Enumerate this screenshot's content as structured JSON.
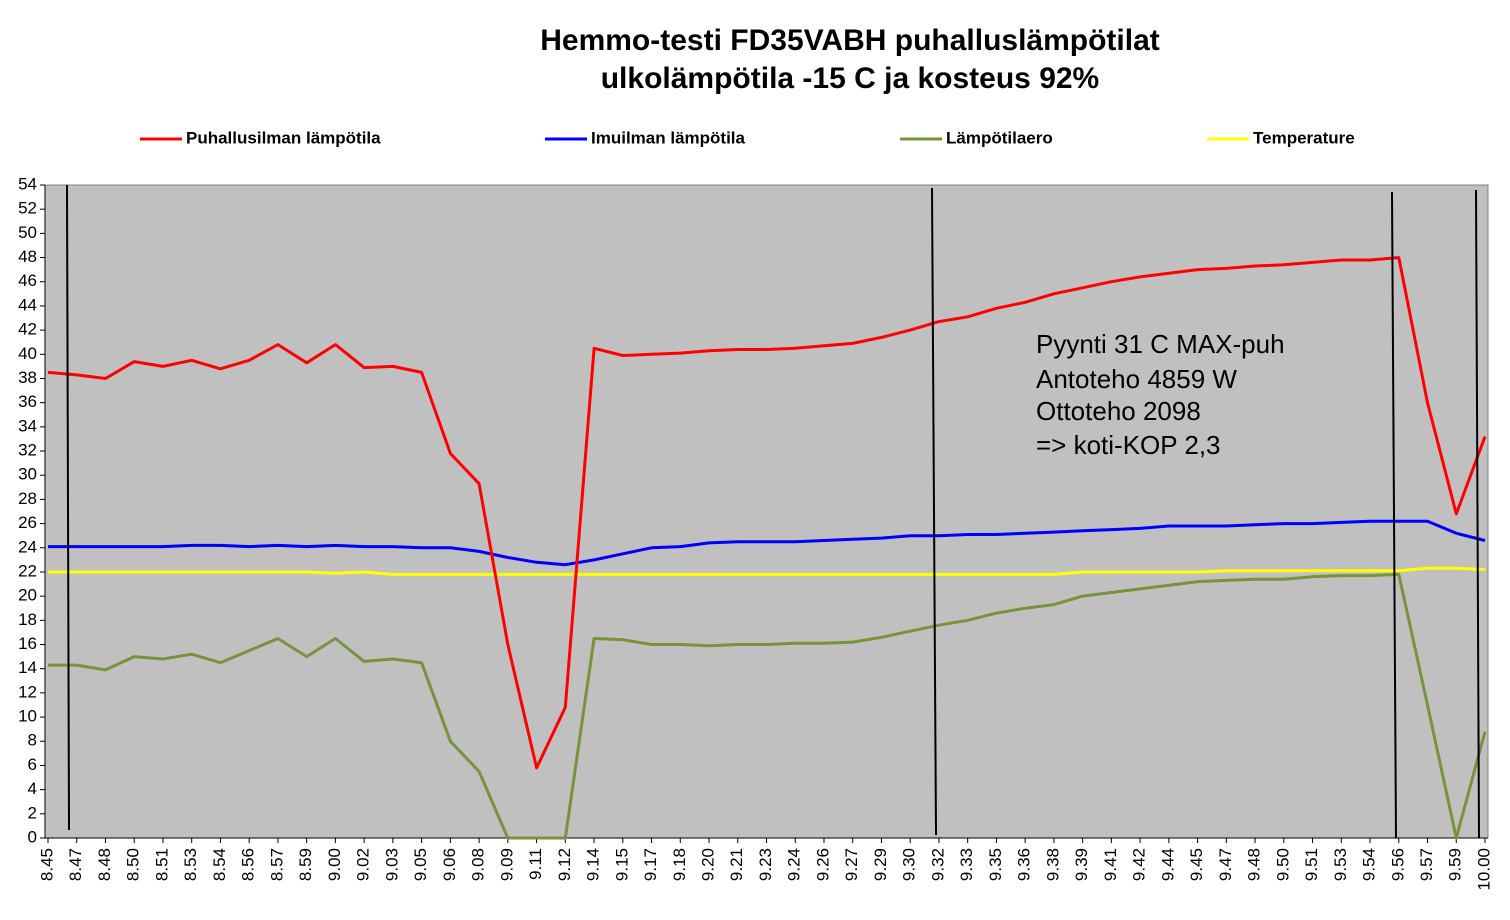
{
  "chart_data": {
    "type": "line",
    "title": [
      "Hemmo-testi  FD35VABH  puhalluslämpötilat",
      "ulkolämpötila  -15 C ja kosteus 92%"
    ],
    "annotations": [
      "Pyynti  31 C MAX-puh",
      "Antoteho 4859 W",
      "Ottoteho 2098",
      "=> koti-KOP 2,3"
    ],
    "categories": [
      "8.45",
      "8.47",
      "8.48",
      "8.50",
      "8.51",
      "8.53",
      "8.54",
      "8.56",
      "8.57",
      "8.59",
      "9.00",
      "9.02",
      "9.03",
      "9.05",
      "9.06",
      "9.08",
      "9.09",
      "9.11",
      "9.12",
      "9.14",
      "9.15",
      "9.17",
      "9.18",
      "9.20",
      "9.21",
      "9.23",
      "9.24",
      "9.26",
      "9.27",
      "9.29",
      "9.30",
      "9.32",
      "9.33",
      "9.35",
      "9.36",
      "9.38",
      "9.39",
      "9.41",
      "9.42",
      "9.44",
      "9.45",
      "9.47",
      "9.48",
      "9.50",
      "9.51",
      "9.53",
      "9.54",
      "9.56",
      "9.57",
      "9.59",
      "10.00"
    ],
    "series": [
      {
        "name": "Puhallusilman lämpötila",
        "color": "#ff0000",
        "values": [
          38.5,
          38.3,
          38.0,
          39.4,
          39.0,
          39.5,
          38.8,
          39.5,
          40.8,
          39.3,
          40.8,
          38.9,
          39.0,
          38.5,
          31.8,
          29.3,
          16,
          5.8,
          10.8,
          40.5,
          39.9,
          40.0,
          40.1,
          40.3,
          40.4,
          40.4,
          40.5,
          40.7,
          40.9,
          41.4,
          42.0,
          42.7,
          43.1,
          43.8,
          44.3,
          45.0,
          45.5,
          46.0,
          46.4,
          46.7,
          47.0,
          47.1,
          47.3,
          47.4,
          47.6,
          47.8,
          47.8,
          48.0,
          36,
          26.8,
          33.2
        ]
      },
      {
        "name": "Imuilman lämpötila",
        "color": "#0000ff",
        "values": [
          24.1,
          24.1,
          24.1,
          24.1,
          24.1,
          24.2,
          24.2,
          24.1,
          24.2,
          24.1,
          24.2,
          24.1,
          24.1,
          24.0,
          24.0,
          23.7,
          23.2,
          22.8,
          22.6,
          23.0,
          23.5,
          24.0,
          24.1,
          24.4,
          24.5,
          24.5,
          24.5,
          24.6,
          24.7,
          24.8,
          25.0,
          25.0,
          25.1,
          25.1,
          25.2,
          25.3,
          25.4,
          25.5,
          25.6,
          25.8,
          25.8,
          25.8,
          25.9,
          26.0,
          26.0,
          26.1,
          26.2,
          26.2,
          26.2,
          25.2,
          24.6
        ]
      },
      {
        "name": "Lämpötilaero",
        "color": "#77933c",
        "values": [
          14.3,
          14.3,
          13.9,
          15.0,
          14.8,
          15.2,
          14.5,
          15.5,
          16.5,
          15.0,
          16.5,
          14.6,
          14.8,
          14.5,
          8.0,
          5.5,
          0,
          0,
          0,
          16.5,
          16.4,
          16.0,
          16.0,
          15.9,
          16.0,
          16.0,
          16.1,
          16.1,
          16.2,
          16.6,
          17.1,
          17.6,
          18.0,
          18.6,
          19.0,
          19.3,
          20.0,
          20.3,
          20.6,
          20.9,
          21.2,
          21.3,
          21.4,
          21.4,
          21.6,
          21.7,
          21.7,
          21.8,
          11,
          0,
          8.8
        ]
      },
      {
        "name": "Temperature",
        "color": "#ffff00",
        "values": [
          22.0,
          22.0,
          22.0,
          22.0,
          22.0,
          22.0,
          22.0,
          22.0,
          22.0,
          22.0,
          21.9,
          22.0,
          21.8,
          21.8,
          21.8,
          21.8,
          21.8,
          21.8,
          21.8,
          21.8,
          21.8,
          21.8,
          21.8,
          21.8,
          21.8,
          21.8,
          21.8,
          21.8,
          21.8,
          21.8,
          21.8,
          21.8,
          21.8,
          21.8,
          21.8,
          21.8,
          22.0,
          22.0,
          22.0,
          22.0,
          22.0,
          22.1,
          22.1,
          22.1,
          22.1,
          22.1,
          22.1,
          22.1,
          22.3,
          22.3,
          22.2
        ]
      }
    ],
    "ylim": [
      0,
      54
    ],
    "yticks": [
      0,
      2,
      4,
      6,
      8,
      10,
      12,
      14,
      16,
      18,
      20,
      22,
      24,
      26,
      28,
      30,
      32,
      34,
      36,
      38,
      40,
      42,
      44,
      46,
      48,
      50,
      52,
      54
    ],
    "grid": false,
    "background": "#c0c0c0"
  }
}
